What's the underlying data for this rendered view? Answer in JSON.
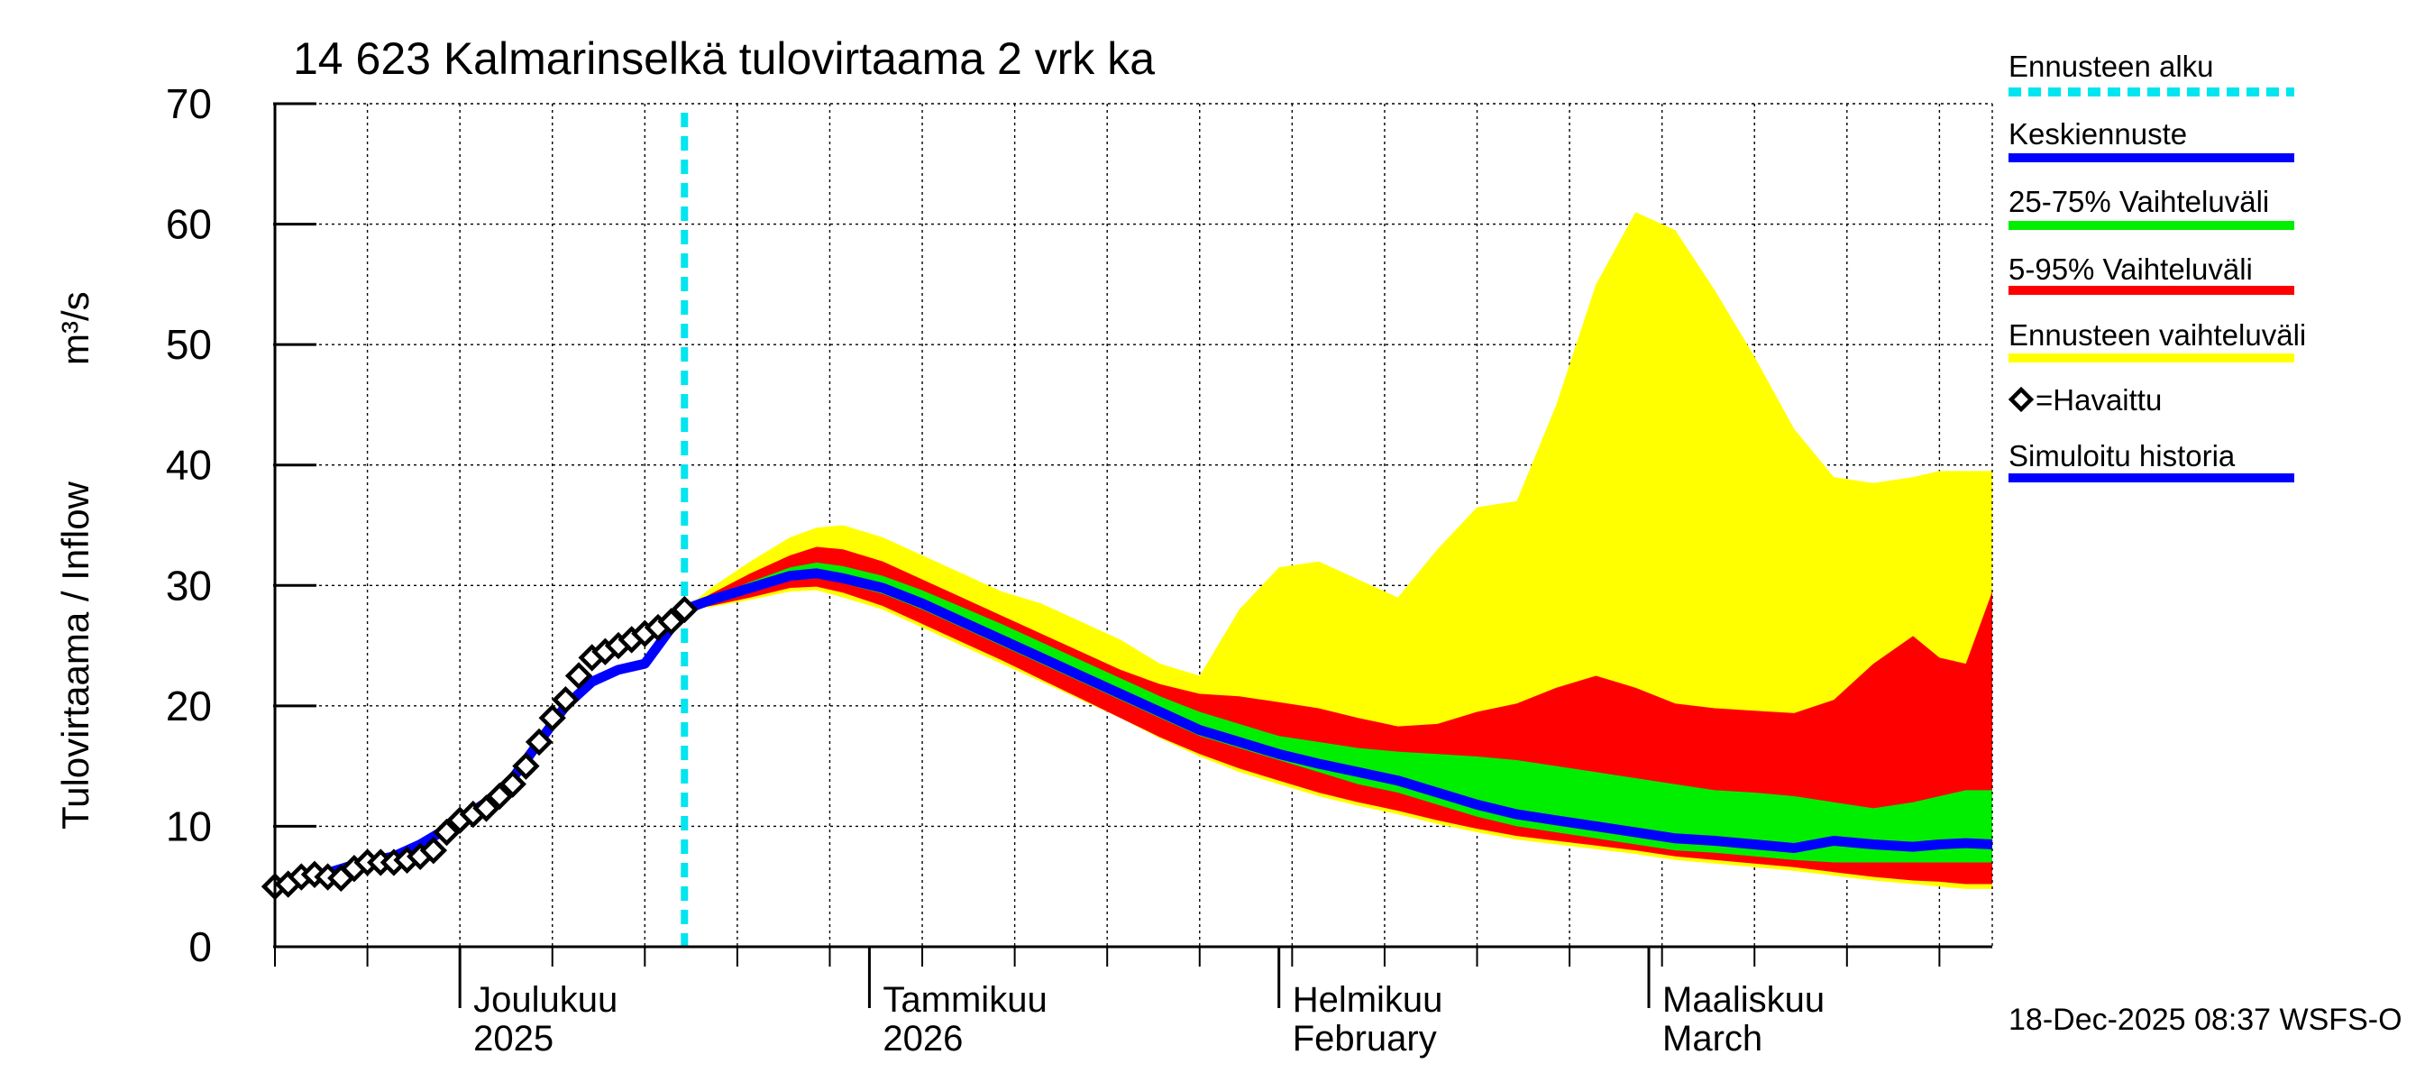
{
  "chart_data": {
    "type": "area",
    "title": "14 623 Kalmarinselkä tulovirtaama 2 vrk ka",
    "ylabel": "Tulovirtaama / Inflow",
    "yunit": "m³/s",
    "ylim": [
      0,
      70
    ],
    "yticks": [
      0,
      10,
      20,
      30,
      40,
      50,
      60,
      70
    ],
    "x_start": "2025-11-17",
    "x_end": "2026-03-27",
    "forecast_start": "2025-12-18",
    "month_labels": [
      {
        "line1": "Joulukuu",
        "line2": "2025",
        "date": "2025-12-01"
      },
      {
        "line1": "Tammikuu",
        "line2": "2026",
        "date": "2026-01-01"
      },
      {
        "line1": "Helmikuu",
        "line2": "February",
        "date": "2026-02-01"
      },
      {
        "line1": "Maaliskuu",
        "line2": "March",
        "date": "2026-03-01"
      }
    ],
    "legend": [
      {
        "key": "forecast_start",
        "label": "Ennusteen alku",
        "color": "#00e5f0"
      },
      {
        "key": "median",
        "label": "Keskiennuste",
        "color": "#0000ff"
      },
      {
        "key": "range_25_75",
        "label": "25-75% Vaihteluväli",
        "color": "#00ee00"
      },
      {
        "key": "range_5_95",
        "label": "5-95% Vaihteluväli",
        "color": "#ff0000"
      },
      {
        "key": "range_full",
        "label": "Ennusteen vaihteluväli",
        "color": "#ffff00"
      },
      {
        "key": "observed",
        "label": "=Havaittu",
        "color": "#000000"
      },
      {
        "key": "simulated",
        "label": "Simuloitu historia",
        "color": "#0000ff"
      }
    ],
    "footer": "18-Dec-2025 08:37 WSFS-O",
    "observed": {
      "x": [
        0,
        1,
        2,
        3,
        4,
        5,
        6,
        7,
        8,
        9,
        10,
        11,
        12,
        13,
        14,
        15,
        16,
        17,
        18,
        19,
        20,
        21,
        22,
        23,
        24,
        25,
        26,
        27,
        28,
        29,
        30,
        31
      ],
      "y": [
        5.0,
        5.2,
        5.8,
        6.0,
        5.8,
        5.7,
        6.5,
        7.0,
        7.0,
        7.0,
        7.2,
        7.5,
        8.0,
        9.5,
        10.5,
        11.0,
        11.5,
        12.5,
        13.5,
        15.0,
        17.0,
        19.0,
        20.5,
        22.5,
        24.0,
        24.5,
        25.0,
        25.5,
        26.0,
        26.5,
        27.0,
        28.0
      ]
    },
    "simulated": {
      "x": [
        0,
        3,
        6,
        9,
        11,
        13,
        16,
        18,
        20,
        22,
        24,
        26,
        28,
        29,
        31
      ],
      "y": [
        5.0,
        5.8,
        6.8,
        7.5,
        8.5,
        9.8,
        12.0,
        14.0,
        17.0,
        20.0,
        22.0,
        23.0,
        23.5,
        25.0,
        28.0
      ]
    },
    "forecast": {
      "x": [
        31,
        33,
        36,
        39,
        41,
        43,
        46,
        49,
        52,
        55,
        58,
        61,
        64,
        67,
        70,
        73,
        76,
        79,
        82,
        85,
        88,
        91,
        94,
        97,
        100,
        103,
        106,
        109,
        112,
        115,
        118,
        121,
        124,
        126,
        128,
        130
      ],
      "median": [
        28.0,
        28.8,
        29.8,
        30.8,
        31.0,
        30.6,
        29.8,
        28.5,
        27.0,
        25.5,
        24.0,
        22.5,
        21.0,
        19.5,
        18.0,
        17.0,
        16.0,
        15.2,
        14.5,
        13.8,
        12.8,
        11.8,
        11.0,
        10.5,
        10.0,
        9.5,
        9.0,
        8.8,
        8.5,
        8.2,
        8.8,
        8.5,
        8.3,
        8.5,
        8.6,
        8.5
      ],
      "p25": [
        28.0,
        28.6,
        29.5,
        30.4,
        30.6,
        30.2,
        29.3,
        28.0,
        26.5,
        25.0,
        23.5,
        22.0,
        20.5,
        19.0,
        17.5,
        16.5,
        15.5,
        14.5,
        13.5,
        12.8,
        11.8,
        10.8,
        10.0,
        9.5,
        9.0,
        8.5,
        8.0,
        7.8,
        7.5,
        7.2,
        7.0,
        7.0,
        7.0,
        7.0,
        7.0,
        7.0
      ],
      "p75": [
        28.0,
        29.0,
        30.3,
        31.5,
        31.9,
        31.6,
        30.8,
        29.6,
        28.2,
        26.8,
        25.3,
        23.8,
        22.3,
        20.8,
        19.5,
        18.5,
        17.5,
        17.0,
        16.5,
        16.2,
        16.0,
        15.8,
        15.5,
        15.0,
        14.5,
        14.0,
        13.5,
        13.0,
        12.8,
        12.5,
        12.0,
        11.5,
        12.0,
        12.5,
        13.0,
        13.0
      ],
      "p5": [
        28.0,
        28.3,
        29.0,
        29.8,
        29.9,
        29.4,
        28.3,
        26.8,
        25.3,
        23.8,
        22.2,
        20.6,
        19.0,
        17.4,
        16.0,
        14.8,
        13.8,
        12.8,
        12.0,
        11.3,
        10.5,
        9.8,
        9.2,
        8.8,
        8.4,
        8.0,
        7.5,
        7.2,
        6.9,
        6.6,
        6.2,
        5.8,
        5.5,
        5.4,
        5.2,
        5.2
      ],
      "p95": [
        28.0,
        29.3,
        31.0,
        32.5,
        33.2,
        33.0,
        32.0,
        30.5,
        29.0,
        27.5,
        26.0,
        24.5,
        23.0,
        21.8,
        21.0,
        20.8,
        20.3,
        19.8,
        19.0,
        18.3,
        18.5,
        19.5,
        20.2,
        21.5,
        22.5,
        21.5,
        20.2,
        19.8,
        19.6,
        19.4,
        20.5,
        23.5,
        25.8,
        24.0,
        23.5,
        29.5
      ],
      "min": [
        28.0,
        28.2,
        28.8,
        29.5,
        29.6,
        29.0,
        28.0,
        26.5,
        25.0,
        23.5,
        22.0,
        20.5,
        19.0,
        17.3,
        15.8,
        14.5,
        13.5,
        12.5,
        11.7,
        11.0,
        10.2,
        9.5,
        8.9,
        8.5,
        8.1,
        7.7,
        7.2,
        6.9,
        6.6,
        6.3,
        5.9,
        5.5,
        5.2,
        5.0,
        4.8,
        4.8
      ],
      "max": [
        28.0,
        29.8,
        32.0,
        34.0,
        34.8,
        35.0,
        34.0,
        32.5,
        31.0,
        29.5,
        28.5,
        27.0,
        25.5,
        23.5,
        22.5,
        28.0,
        31.5,
        32.0,
        30.5,
        29.0,
        33.0,
        36.5,
        37.0,
        45.0,
        55.0,
        61.0,
        59.5,
        54.5,
        49.0,
        43.0,
        39.0,
        38.5,
        39.0,
        39.5,
        39.5,
        39.5
      ]
    }
  }
}
